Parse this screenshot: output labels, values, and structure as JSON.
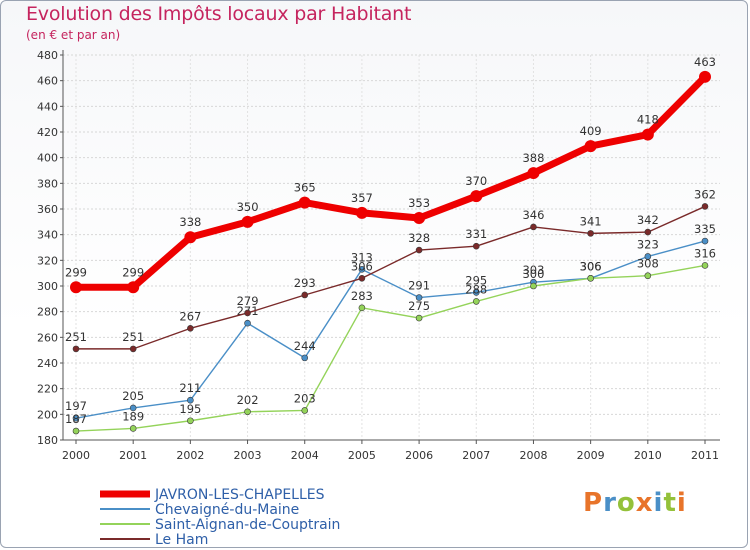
{
  "header": {
    "title": "Evolution des Impôts locaux par Habitant",
    "subtitle": "(en € et par an)"
  },
  "logo": {
    "text": "Proxiti"
  },
  "chart_data": {
    "type": "line",
    "title": "Evolution des Impôts locaux par Habitant",
    "subtitle": "(en € et par an)",
    "xlabel": "",
    "ylabel": "",
    "x": [
      "2000",
      "2001",
      "2002",
      "2003",
      "2004",
      "2005",
      "2006",
      "2007",
      "2008",
      "2009",
      "2010",
      "2011"
    ],
    "ylim": [
      180,
      480
    ],
    "yticks": [
      180,
      200,
      220,
      240,
      260,
      280,
      300,
      320,
      340,
      360,
      380,
      400,
      420,
      440,
      460,
      480
    ],
    "grid": true,
    "legend_position": "bottom-left",
    "series": [
      {
        "name": "JAVRON-LES-CHAPELLES",
        "color": "#ee0000",
        "highlight": true,
        "values": [
          299,
          299,
          338,
          350,
          365,
          357,
          353,
          370,
          388,
          409,
          418,
          463
        ]
      },
      {
        "name": "Chevaigné-du-Maine",
        "color": "#4a8fc7",
        "values": [
          197,
          205,
          211,
          271,
          244,
          313,
          291,
          295,
          303,
          306,
          323,
          335
        ]
      },
      {
        "name": "Saint-Aignan-de-Couptrain",
        "color": "#94d35a",
        "values": [
          187,
          189,
          195,
          202,
          203,
          283,
          275,
          288,
          300,
          306,
          308,
          316
        ]
      },
      {
        "name": "Le Ham",
        "color": "#7a2a2a",
        "values": [
          251,
          251,
          267,
          279,
          293,
          306,
          328,
          331,
          346,
          341,
          342,
          362
        ]
      }
    ]
  }
}
